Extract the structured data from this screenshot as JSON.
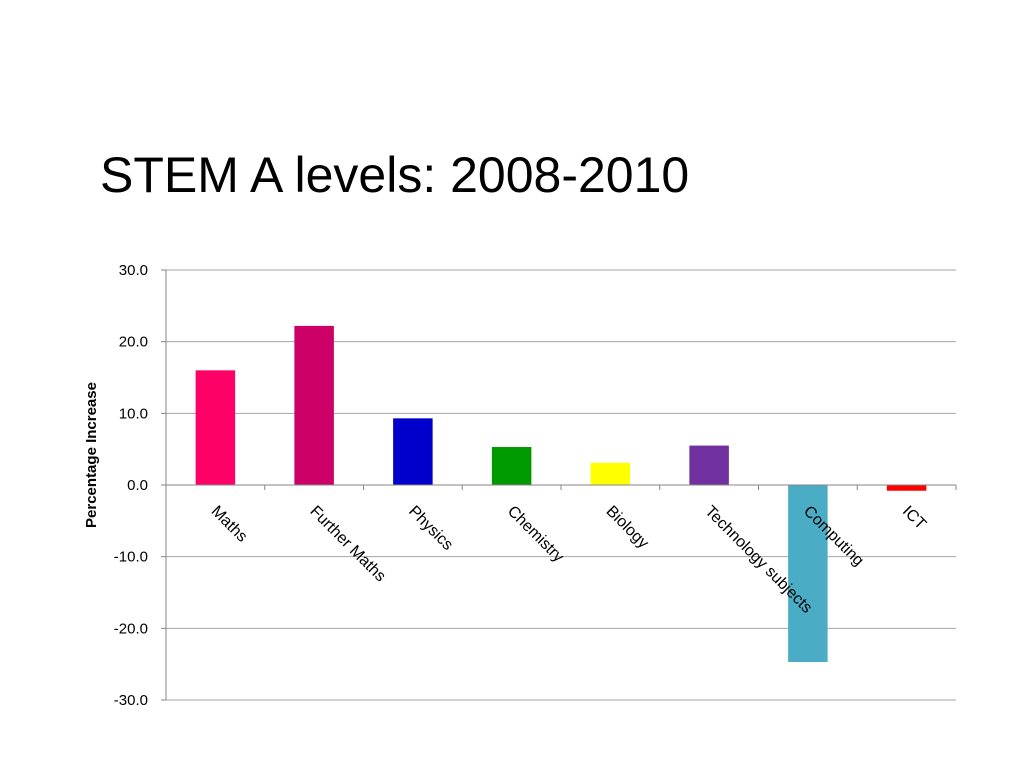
{
  "slide": {
    "title": "STEM A levels: 2008-2010"
  },
  "chart_data": {
    "type": "bar",
    "title": "",
    "xlabel": "",
    "ylabel": "Percentage Increase",
    "ylim": [
      -30,
      30
    ],
    "yticks": [
      30,
      20,
      10,
      0,
      -10,
      -20,
      -30
    ],
    "ytick_labels": [
      "30.0",
      "20.0",
      "10.0",
      "0.0",
      "-10.0",
      "-20.0",
      "-30.0"
    ],
    "grid": true,
    "categories": [
      "Maths",
      "Further Maths",
      "Physics",
      "Chemistry",
      "Biology",
      "Technology subjects",
      "Computing",
      "ICT"
    ],
    "values": [
      16.0,
      22.2,
      9.3,
      5.3,
      3.1,
      5.5,
      -24.7,
      -0.8
    ],
    "colors": [
      "#FF0066",
      "#CC0066",
      "#0000CC",
      "#009900",
      "#FFFF00",
      "#7030A0",
      "#4BACC6",
      "#FF0000"
    ]
  }
}
